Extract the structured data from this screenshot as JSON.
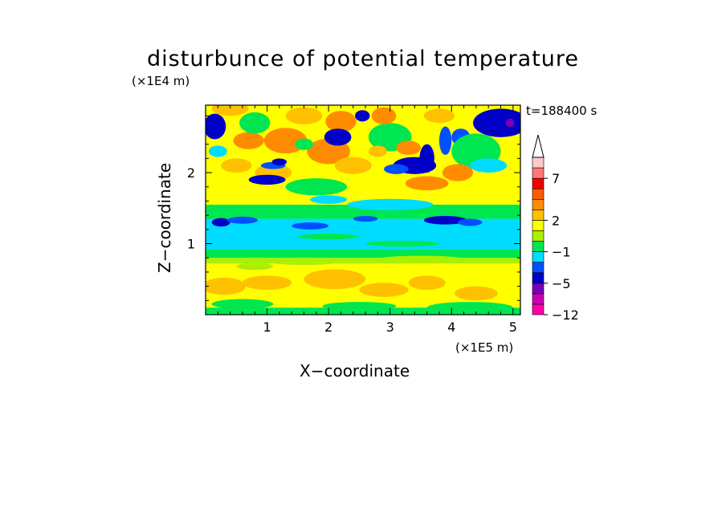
{
  "chart_data": {
    "type": "heatmap",
    "title": "disturbunce of potential temperature",
    "xlabel": "X−coordinate",
    "ylabel": "Z−coordinate",
    "x_unit": "(×1E5 m)",
    "y_unit": "(×1E4 m)",
    "time_label": "t=188400 s",
    "xlim": [
      0,
      5.12
    ],
    "ylim": [
      0,
      2.95
    ],
    "x_ticks": [
      {
        "value": 1,
        "label": "1"
      },
      {
        "value": 2,
        "label": "2"
      },
      {
        "value": 3,
        "label": "3"
      },
      {
        "value": 4,
        "label": "4"
      },
      {
        "value": 5,
        "label": "5"
      }
    ],
    "y_ticks": [
      {
        "value": 1,
        "label": "1"
      },
      {
        "value": 2,
        "label": "2"
      }
    ],
    "colorbar": {
      "levels": [
        {
          "color": "#ff00a8"
        },
        {
          "color": "#c800b4"
        },
        {
          "color": "#7800b4"
        },
        {
          "color": "#0000c8"
        },
        {
          "color": "#0050ff"
        },
        {
          "color": "#00dcff"
        },
        {
          "color": "#00e650"
        },
        {
          "color": "#aaf000"
        },
        {
          "color": "#ffff00"
        },
        {
          "color": "#ffc000"
        },
        {
          "color": "#ff8c00"
        },
        {
          "color": "#ff5a00"
        },
        {
          "color": "#f00000"
        },
        {
          "color": "#ff7878"
        },
        {
          "color": "#ffc8c8"
        }
      ],
      "labels": [
        {
          "value": "7",
          "level": 13
        },
        {
          "value": "2",
          "level": 9
        },
        {
          "value": "−1",
          "level": 6
        },
        {
          "value": "−5",
          "level": 3
        },
        {
          "value": "−12",
          "level": 0
        }
      ]
    }
  }
}
